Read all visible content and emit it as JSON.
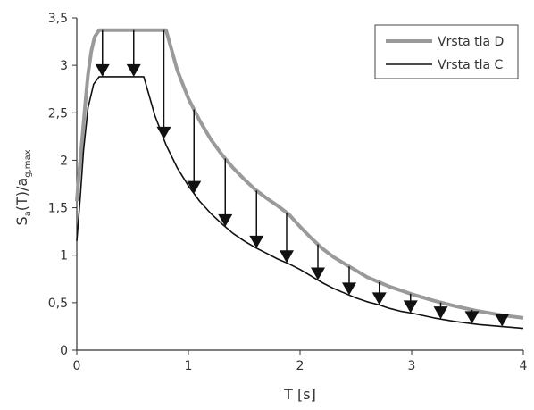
{
  "chart_data": {
    "type": "line",
    "title": "",
    "xlabel": "T [s]",
    "ylabel": {
      "main": "S",
      "sub1": "a",
      "mid": "(T)/a",
      "sub2": "g,max"
    },
    "xlim": [
      0,
      4
    ],
    "ylim": [
      0,
      3.5
    ],
    "xticks": [
      0,
      1,
      2,
      3,
      4
    ],
    "xtick_labels": [
      "0",
      "1",
      "2",
      "3",
      "4"
    ],
    "yticks": [
      0,
      0.5,
      1,
      1.5,
      2,
      2.5,
      3,
      3.5
    ],
    "ytick_labels": [
      "0",
      "0,5",
      "1",
      "1,5",
      "2",
      "2,5",
      "3",
      "3,5"
    ],
    "grid": false,
    "legend_position": "top-right",
    "series": [
      {
        "name": "Vrsta tla D",
        "color": "#9a9a9a",
        "x": [
          0,
          0.02,
          0.05,
          0.08,
          0.1,
          0.13,
          0.16,
          0.2,
          0.5,
          0.8,
          0.9,
          1.0,
          1.1,
          1.2,
          1.3,
          1.4,
          1.5,
          1.6,
          1.7,
          1.8,
          1.9,
          2.0,
          2.1,
          2.2,
          2.3,
          2.4,
          2.5,
          2.6,
          2.7,
          2.8,
          2.9,
          3.0,
          3.2,
          3.4,
          3.6,
          3.8,
          4.0
        ],
        "y": [
          1.57,
          1.86,
          2.25,
          2.65,
          2.9,
          3.15,
          3.3,
          3.37,
          3.37,
          3.37,
          2.95,
          2.65,
          2.42,
          2.22,
          2.06,
          1.92,
          1.8,
          1.69,
          1.6,
          1.52,
          1.43,
          1.3,
          1.18,
          1.07,
          0.98,
          0.91,
          0.84,
          0.77,
          0.72,
          0.67,
          0.63,
          0.59,
          0.52,
          0.46,
          0.41,
          0.37,
          0.34
        ]
      },
      {
        "name": "Vrsta tla C",
        "color": "#111111",
        "x": [
          0,
          0.03,
          0.06,
          0.1,
          0.15,
          0.2,
          0.6,
          0.7,
          0.8,
          0.9,
          1.0,
          1.1,
          1.2,
          1.3,
          1.4,
          1.5,
          1.6,
          1.7,
          1.8,
          1.9,
          2.0,
          2.1,
          2.2,
          2.3,
          2.4,
          2.5,
          2.6,
          2.7,
          2.8,
          2.9,
          3.0,
          3.2,
          3.4,
          3.6,
          3.8,
          4.0
        ],
        "y": [
          1.15,
          1.6,
          2.1,
          2.55,
          2.8,
          2.88,
          2.88,
          2.47,
          2.16,
          1.92,
          1.73,
          1.57,
          1.44,
          1.33,
          1.23,
          1.15,
          1.08,
          1.02,
          0.96,
          0.91,
          0.85,
          0.78,
          0.71,
          0.65,
          0.6,
          0.55,
          0.51,
          0.48,
          0.44,
          0.41,
          0.39,
          0.34,
          0.3,
          0.27,
          0.25,
          0.23
        ]
      }
    ],
    "annotations": {
      "type": "arrows",
      "description_x": [
        0.23,
        0.51,
        0.78,
        1.05,
        1.33,
        1.61,
        1.88,
        2.16,
        2.44,
        2.71,
        2.99,
        3.26,
        3.54,
        3.81
      ]
    }
  }
}
